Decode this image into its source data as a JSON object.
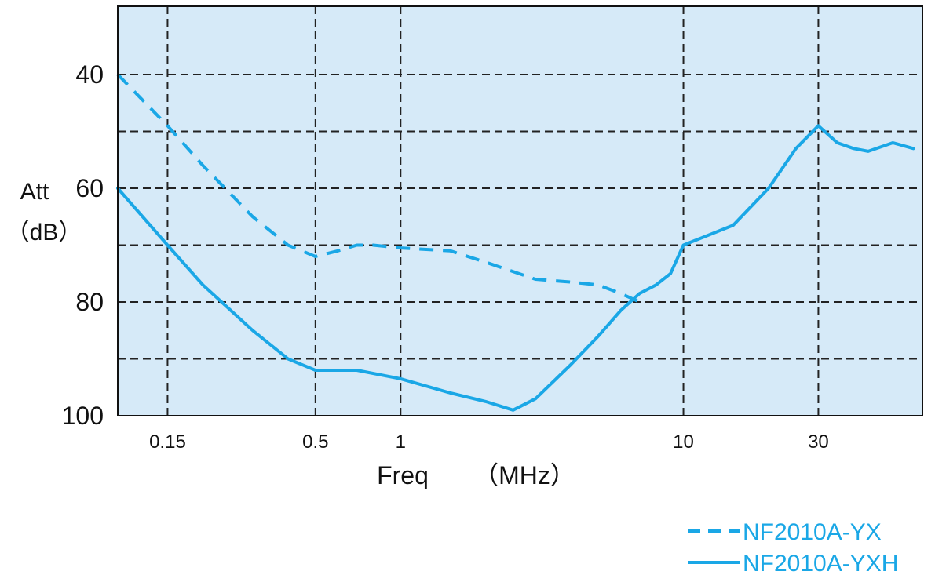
{
  "chart_data": {
    "type": "line",
    "ylabel_line1": "Att",
    "ylabel_line2": "（dB）",
    "xlabel_text": "Freq",
    "xlabel_unit": "（MHz）",
    "x_scale": "log",
    "x_range": [
      0.1,
      70
    ],
    "y_range": [
      100,
      28
    ],
    "y_inverted": true,
    "y_ticks": [
      40,
      60,
      80,
      100
    ],
    "y_grid": [
      40,
      50,
      60,
      70,
      80,
      90
    ],
    "x_ticks": [
      0.15,
      0.5,
      1,
      10,
      30
    ],
    "x_tick_labels": [
      "0.15",
      "0.5",
      "1",
      "10",
      "30"
    ],
    "x_grid": [
      0.15,
      0.5,
      1,
      10,
      30
    ],
    "grid": true,
    "plot_background": "#d6eaf8",
    "line_color": "#1aa7e6",
    "legend_position": "bottom-right",
    "series": [
      {
        "name": "NF2010A-YX",
        "style": "dashed",
        "points": [
          [
            0.1,
            40
          ],
          [
            0.15,
            49
          ],
          [
            0.2,
            56
          ],
          [
            0.3,
            65
          ],
          [
            0.4,
            70
          ],
          [
            0.5,
            72
          ],
          [
            0.6,
            71
          ],
          [
            0.7,
            70
          ],
          [
            0.8,
            70
          ],
          [
            1,
            70.5
          ],
          [
            1.5,
            71
          ],
          [
            2,
            73
          ],
          [
            3,
            76
          ],
          [
            4,
            76.5
          ],
          [
            5,
            77
          ],
          [
            6,
            78.5
          ],
          [
            7,
            80
          ]
        ]
      },
      {
        "name": "NF2010A-YXH",
        "style": "solid",
        "points": [
          [
            0.1,
            60
          ],
          [
            0.15,
            70
          ],
          [
            0.2,
            77
          ],
          [
            0.3,
            85
          ],
          [
            0.4,
            90
          ],
          [
            0.5,
            92
          ],
          [
            0.6,
            92
          ],
          [
            0.7,
            92
          ],
          [
            1,
            93.5
          ],
          [
            1.5,
            96
          ],
          [
            2,
            97.5
          ],
          [
            2.5,
            99
          ],
          [
            3,
            97
          ],
          [
            4,
            91
          ],
          [
            5,
            86
          ],
          [
            6,
            81.5
          ],
          [
            7,
            78.5
          ],
          [
            8,
            77
          ],
          [
            9,
            75
          ],
          [
            10,
            70
          ],
          [
            15,
            66.5
          ],
          [
            20,
            60
          ],
          [
            25,
            53
          ],
          [
            30,
            49
          ],
          [
            35,
            52
          ],
          [
            40,
            53
          ],
          [
            45,
            53.5
          ],
          [
            55,
            52
          ],
          [
            65,
            53
          ]
        ]
      }
    ]
  }
}
